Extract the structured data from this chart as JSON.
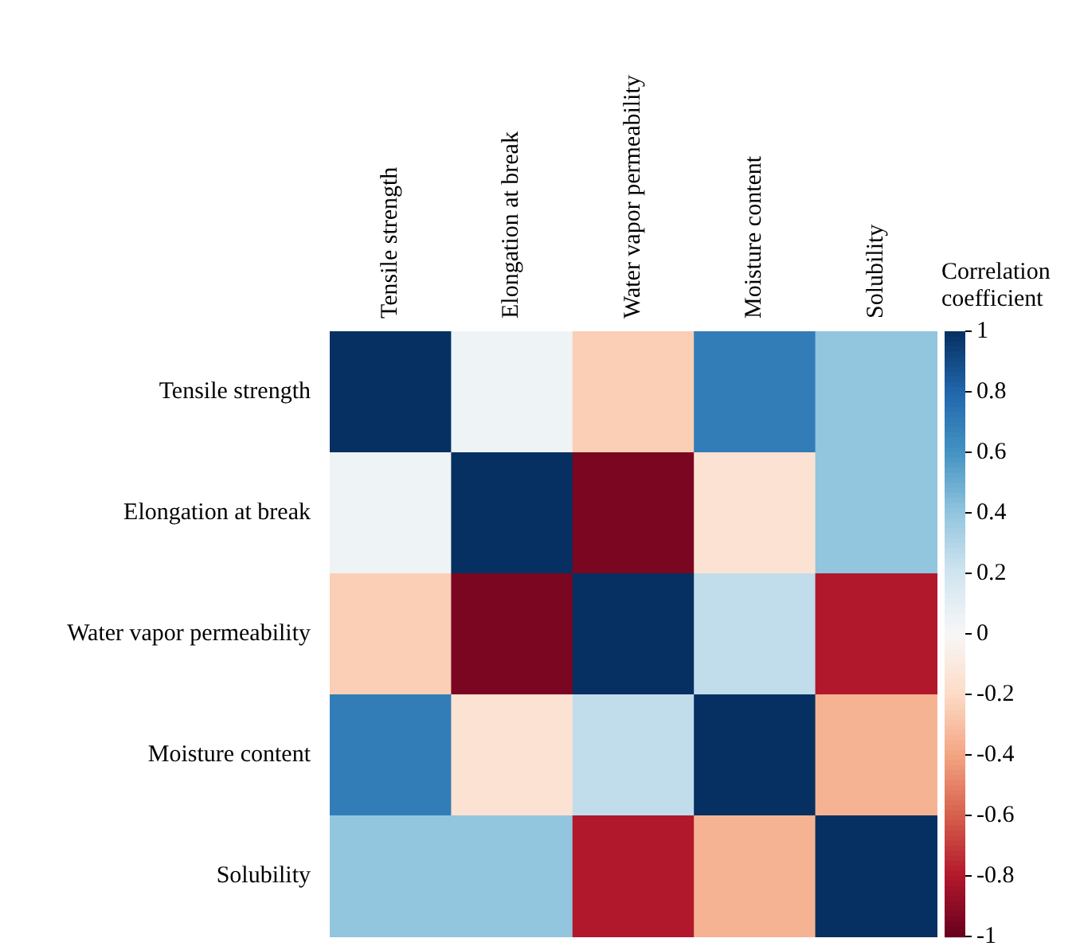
{
  "chart_data": {
    "type": "heatmap",
    "clabel": "Correlation coefficient",
    "categories": [
      "Tensile strength",
      "Elongation at break",
      "Water vapor permeability",
      "Moisture content",
      "Solubility"
    ],
    "y_categories": [
      "Tensile strength",
      "Elongation at break",
      "Water vapor permeability",
      "Moisture content",
      "Solubility"
    ],
    "cells": [
      [
        1,
        0.05,
        -0.25,
        0.7,
        0.4
      ],
      [
        0.05,
        1,
        -0.95,
        -0.15,
        0.4
      ],
      [
        -0.25,
        -0.95,
        1,
        0.25,
        -0.8
      ],
      [
        0.7,
        -0.15,
        0.25,
        1,
        -0.35
      ],
      [
        0.4,
        0.4,
        -0.8,
        -0.35,
        1
      ]
    ],
    "clim": [
      -1,
      1
    ],
    "cticks": [
      1,
      0.8,
      0.6,
      0.4,
      0.2,
      0,
      -0.2,
      -0.4,
      -0.6,
      -0.8,
      -1
    ]
  }
}
